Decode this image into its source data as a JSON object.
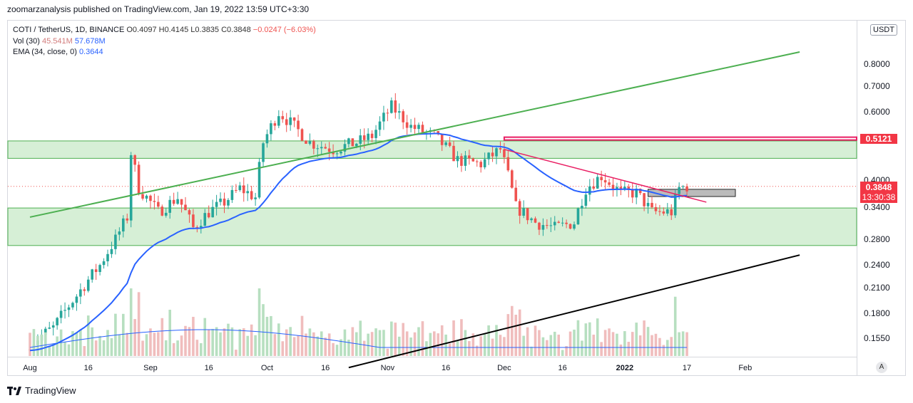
{
  "header": {
    "publisher_line": "zoomarzanalysis published on TradingView.com, Jan 19, 2022 13:59 UTC+3:30"
  },
  "legend": {
    "symbol": "COTI / TetherUS, 1D, BINANCE",
    "open": "O0.4097",
    "high": "H0.4145",
    "low": "L0.3835",
    "close": "C0.3848",
    "change": "−0.0247 (−6.03%)",
    "vol_label": "Vol (30)",
    "vol_value1": "45.541M",
    "vol_value2": "57.678M",
    "ema_label": "EMA (34, close, 0)",
    "ema_value": "0.3644"
  },
  "currency_button": "USDT",
  "price_tag": "0.3848",
  "countdown_tag": "13:30:38",
  "level_tag": "0.5121",
  "auto_button": "A",
  "brand": "TradingView",
  "colors": {
    "up": "#26a69a",
    "down": "#ef5350",
    "ema": "#2962ff",
    "channel_fill": "#d6efd6",
    "channel_line": "#4caf50",
    "resistance": "#e91e63",
    "support_trend": "#000000"
  },
  "chart_data": {
    "type": "candlestick",
    "title": "COTI / TetherUS, 1D, BINANCE",
    "y_scale": "log",
    "y_ticks": [
      "0.8000",
      "0.7000",
      "0.6000",
      "0.4000",
      "0.3400",
      "0.2800",
      "0.2400",
      "0.2100",
      "0.1800",
      "0.1550"
    ],
    "x_ticks": [
      "Aug",
      "16",
      "Sep",
      "16",
      "Oct",
      "16",
      "Nov",
      "16",
      "Dec",
      "16",
      "2022",
      "17",
      "Feb"
    ],
    "last_close": 0.3848,
    "ema_34": 0.3644,
    "zones": [
      {
        "name": "upper zone",
        "top": 0.505,
        "bottom": 0.455
      },
      {
        "name": "lower zone",
        "top": 0.338,
        "bottom": 0.27
      }
    ],
    "horizontal_levels": [
      0.5121
    ],
    "trendlines": [
      {
        "name": "green rising",
        "from": [
          "Aug 1",
          0.32
        ],
        "to": [
          "Feb 15",
          0.86
        ]
      },
      {
        "name": "black support",
        "from": [
          "Oct 22",
          0.13
        ],
        "to": [
          "Feb 15",
          0.255
        ]
      },
      {
        "name": "pink falling",
        "from": [
          "Dec 1",
          0.48
        ],
        "to": [
          "Jan 22",
          0.35
        ]
      }
    ],
    "volume_series": {
      "name": "Vol (30)",
      "values": [
        45.541,
        57.678
      ]
    }
  }
}
